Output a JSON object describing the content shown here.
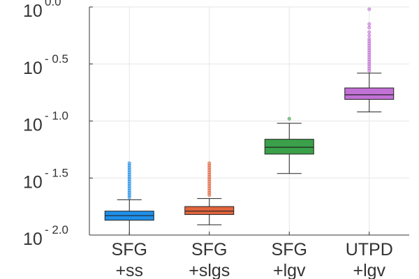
{
  "chart_data": {
    "type": "box",
    "title": "",
    "xlabel": "",
    "ylabel": "",
    "yscale": "log10",
    "ylim_log10": [
      -2.0,
      0.0
    ],
    "grid": true,
    "legend": "none",
    "yticks": [
      {
        "base": "10",
        "exp": "- 2.0",
        "log10": -2.0
      },
      {
        "base": "10",
        "exp": "- 1.5",
        "log10": -1.5
      },
      {
        "base": "10",
        "exp": "- 1.0",
        "log10": -1.0
      },
      {
        "base": "10",
        "exp": "- 0.5",
        "log10": -0.5
      },
      {
        "base": "10",
        "exp": "0.0",
        "log10": 0.0
      }
    ],
    "categories": [
      {
        "line1": "SFG",
        "line2": "+ss"
      },
      {
        "line1": "SFG",
        "line2": "+slgs"
      },
      {
        "line1": "SFG",
        "line2": "+lgv"
      },
      {
        "line1": "UTPD",
        "line2": "+lgv"
      }
    ],
    "series": [
      {
        "name": "SFG+ss",
        "color": "#1f8fe8",
        "whisker_low": -2.0,
        "q1": -1.87,
        "median": -1.83,
        "q3": -1.79,
        "whisker_high": -1.69,
        "outliers": [
          -1.37,
          -1.39,
          -1.41,
          -1.43,
          -1.45,
          -1.47,
          -1.49,
          -1.51,
          -1.53,
          -1.55,
          -1.57,
          -1.59,
          -1.61,
          -1.63,
          -1.65,
          -1.67
        ]
      },
      {
        "name": "SFG+slgs",
        "color": "#e1653d",
        "whisker_low": -1.91,
        "q1": -1.82,
        "median": -1.79,
        "q3": -1.75,
        "whisker_high": -1.68,
        "outliers": [
          -1.37,
          -1.39,
          -1.41,
          -1.43,
          -1.45,
          -1.47,
          -1.49,
          -1.51,
          -1.53,
          -1.55,
          -1.57,
          -1.59,
          -1.61,
          -1.63,
          -1.65
        ]
      },
      {
        "name": "SFG+lgv",
        "color": "#3aa04a",
        "whisker_low": -1.46,
        "q1": -1.29,
        "median": -1.23,
        "q3": -1.16,
        "whisker_high": -1.02,
        "outliers": [
          -0.98
        ]
      },
      {
        "name": "UTPD+lgv",
        "color": "#c271d6",
        "whisker_low": -0.92,
        "q1": -0.81,
        "median": -0.77,
        "q3": -0.71,
        "whisker_high": -0.58,
        "outliers": [
          -0.02,
          -0.15,
          -0.18,
          -0.22,
          -0.25,
          -0.28,
          -0.3,
          -0.32,
          -0.34,
          -0.36,
          -0.38,
          -0.4,
          -0.42,
          -0.44,
          -0.46,
          -0.48,
          -0.5,
          -0.52,
          -0.54,
          -0.56
        ]
      }
    ]
  }
}
